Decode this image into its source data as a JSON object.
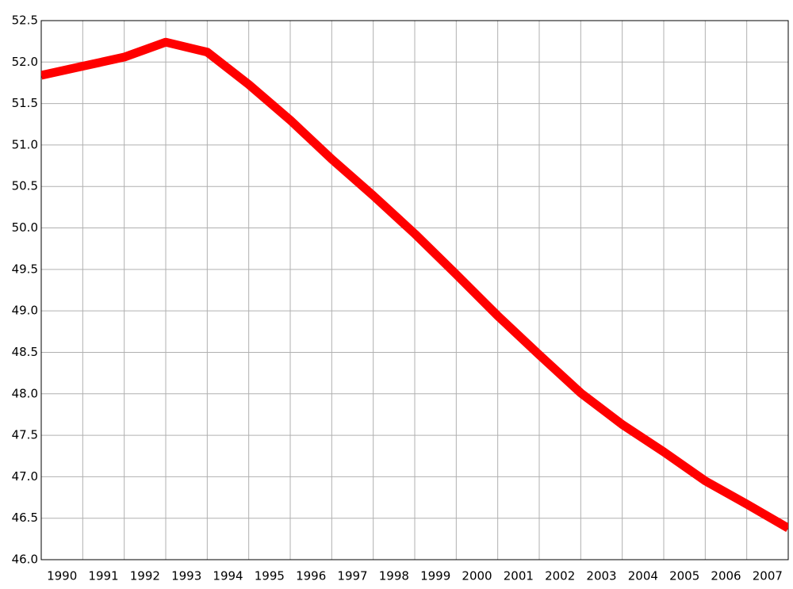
{
  "chart_data": {
    "type": "line",
    "x": [
      1989.5,
      1990.5,
      1991.5,
      1992.5,
      1993.5,
      1994.5,
      1995.5,
      1996.5,
      1997.5,
      1998.5,
      1999.5,
      2000.5,
      2001.5,
      2002.5,
      2003.5,
      2004.5,
      2005.5,
      2006.5,
      2007.5
    ],
    "series": [
      {
        "color": "#ff0000",
        "values": [
          51.84,
          51.95,
          52.06,
          52.24,
          52.12,
          51.73,
          51.3,
          50.83,
          50.39,
          49.93,
          49.44,
          48.94,
          48.47,
          48.01,
          47.63,
          47.3,
          46.95,
          46.67,
          46.38
        ]
      }
    ],
    "xlim": [
      1989.5,
      2007.5
    ],
    "xticks": [
      1990,
      1991,
      1992,
      1993,
      1994,
      1995,
      1996,
      1997,
      1998,
      1999,
      2000,
      2001,
      2002,
      2003,
      2004,
      2005,
      2006,
      2007
    ],
    "ylim": [
      46,
      52.5
    ],
    "yticks": [
      {
        "value": 46,
        "label": "46.0"
      },
      46.5,
      {
        "value": 47,
        "label": "47.0"
      },
      47.5,
      {
        "value": 48,
        "label": "48.0"
      },
      48.5,
      {
        "value": 49,
        "label": "49.0"
      },
      49.5,
      {
        "value": 50,
        "label": "50.0"
      },
      50.5,
      {
        "value": 51,
        "label": "51.0"
      },
      51.5,
      {
        "value": 52,
        "label": "52.0"
      },
      52.5
    ],
    "grid": true
  }
}
